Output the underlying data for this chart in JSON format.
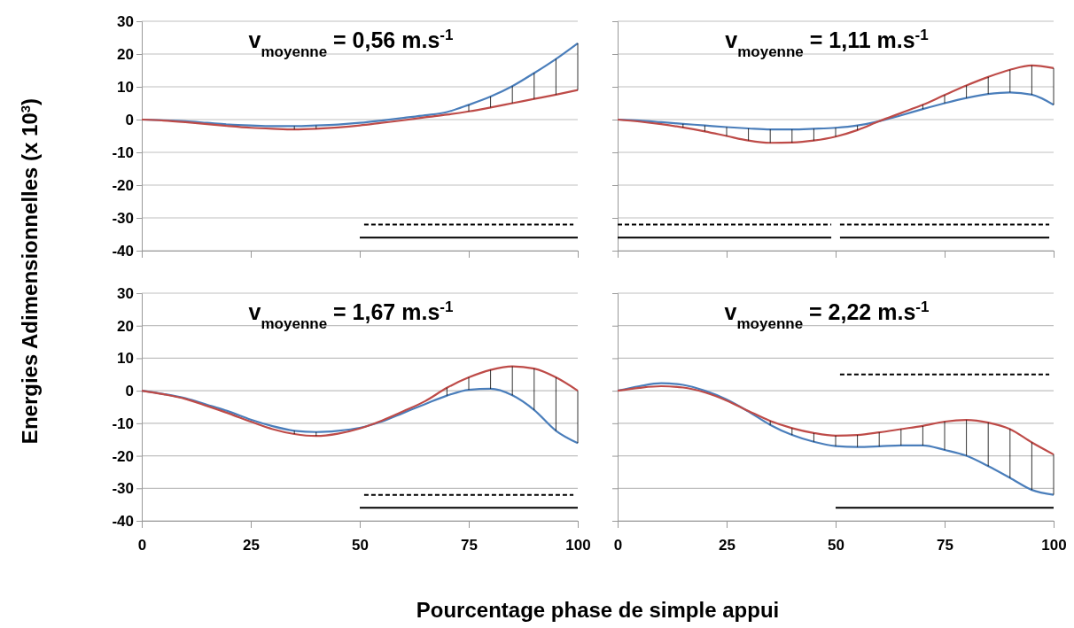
{
  "chart_data": [
    {
      "type": "line",
      "title": "v$_{moyenne}$ = 0,56 m.s$^{-1}$",
      "ylabel": "Energies Adimensionnelles (x 10$^{3}$)",
      "xlabel": "Pourcentage phase de simple appui",
      "x": [
        0,
        5,
        10,
        15,
        20,
        25,
        30,
        35,
        40,
        45,
        50,
        55,
        60,
        65,
        70,
        75,
        80,
        85,
        90,
        95,
        100
      ],
      "xlim": [
        0,
        100
      ],
      "xticks": [
        0,
        25,
        50,
        75,
        100
      ],
      "ylim": [
        -40,
        30
      ],
      "yticks": [
        -40,
        -30,
        -20,
        -10,
        0,
        10,
        20,
        30
      ],
      "grid": "y",
      "tick_labels": "y",
      "line_style": "solid",
      "series": [
        {
          "color": "#4a7ebb",
          "values": [
            0,
            -0.2,
            -0.5,
            -1,
            -1.5,
            -1.8,
            -2,
            -2,
            -1.8,
            -1.5,
            -1,
            -0.3,
            0.5,
            1.3,
            2.3,
            4.5,
            7,
            10.2,
            14.2,
            18.5,
            23.3
          ]
        },
        {
          "color": "#be4b48",
          "values": [
            0,
            -0.3,
            -0.8,
            -1.4,
            -2,
            -2.5,
            -2.8,
            -3,
            -2.8,
            -2.4,
            -1.8,
            -1,
            -0.2,
            0.7,
            1.5,
            2.5,
            3.7,
            5,
            6.3,
            7.6,
            9
          ],
          "errors": [
            null,
            null,
            null,
            null,
            null,
            null,
            null,
            [
              -3,
              -2
            ],
            [
              -2.8,
              -1.8
            ],
            null,
            null,
            null,
            null,
            null,
            null,
            [
              2.5,
              4.5
            ],
            [
              3.7,
              7
            ],
            [
              5,
              10.2
            ],
            [
              6.3,
              14.2
            ],
            [
              7.6,
              18.5
            ],
            [
              9,
              23.3
            ]
          ]
        },
        {
          "color": "#000000",
          "line_style": "dashed",
          "x": [
            51,
            99
          ],
          "values": [
            -32,
            -32
          ]
        },
        {
          "color": "#000000",
          "line_style": "solid",
          "x": [
            50,
            100
          ],
          "values": [
            -36,
            -36
          ]
        }
      ]
    },
    {
      "type": "line",
      "title": "v$_{moyenne}$ = 1,11 m.s$^{-1}$",
      "x": [
        0,
        5,
        10,
        15,
        20,
        25,
        30,
        35,
        40,
        45,
        50,
        55,
        60,
        65,
        70,
        75,
        80,
        85,
        90,
        95,
        100
      ],
      "xlim": [
        0,
        100
      ],
      "xticks": [
        0,
        25,
        50,
        75,
        100
      ],
      "ylim": [
        -40,
        30
      ],
      "yticks": [
        -40,
        -30,
        -20,
        -10,
        0,
        10,
        20,
        30
      ],
      "grid": "y",
      "tick_labels": false,
      "line_style": "solid",
      "series": [
        {
          "color": "#4a7ebb",
          "values": [
            0,
            -0.3,
            -0.8,
            -1.3,
            -1.8,
            -2.3,
            -2.7,
            -3,
            -3,
            -2.8,
            -2.5,
            -1.8,
            -0.5,
            1.3,
            3.2,
            5,
            6.6,
            7.8,
            8.3,
            7.6,
            4.5
          ]
        },
        {
          "color": "#be4b48",
          "values": [
            0,
            -0.6,
            -1.4,
            -2.4,
            -3.6,
            -5,
            -6.4,
            -7.1,
            -7,
            -6.4,
            -5.2,
            -3.2,
            -0.5,
            2,
            4.5,
            7.5,
            10.4,
            13,
            15.2,
            16.5,
            15.7
          ],
          "errors": [
            null,
            null,
            null,
            [
              -2.4,
              -1.3
            ],
            [
              -3.6,
              -1.8
            ],
            [
              -5,
              -2.3
            ],
            [
              -6.4,
              -2.7
            ],
            [
              -7.1,
              -3
            ],
            [
              -7,
              -3
            ],
            [
              -6.4,
              -2.8
            ],
            [
              -5.2,
              -2.5
            ],
            [
              -3.2,
              -1.8
            ],
            null,
            null,
            [
              3.2,
              4.5
            ],
            [
              5,
              7.5
            ],
            [
              6.6,
              10.4
            ],
            [
              7.8,
              13
            ],
            [
              8.3,
              15.2
            ],
            [
              7.6,
              16.5
            ],
            [
              4.5,
              15.7
            ]
          ]
        },
        {
          "color": "#000000",
          "line_style": "dashed",
          "x": [
            0,
            49
          ],
          "values": [
            -32,
            -32
          ]
        },
        {
          "color": "#000000",
          "line_style": "dashed",
          "x": [
            51,
            99
          ],
          "values": [
            -32,
            -32
          ]
        },
        {
          "color": "#000000",
          "line_style": "solid",
          "x": [
            0,
            49
          ],
          "values": [
            -36,
            -36
          ]
        },
        {
          "color": "#000000",
          "line_style": "solid",
          "x": [
            51,
            99
          ],
          "values": [
            -36,
            -36
          ]
        }
      ]
    },
    {
      "type": "line",
      "title": "v$_{moyenne}$ = 1,67 m.s$^{-1}$",
      "x": [
        0,
        5,
        10,
        15,
        20,
        25,
        30,
        35,
        40,
        45,
        50,
        55,
        60,
        65,
        70,
        75,
        80,
        85,
        90,
        95,
        100
      ],
      "xlim": [
        0,
        100
      ],
      "xticks": [
        0,
        25,
        50,
        75,
        100
      ],
      "ylim": [
        -40,
        30
      ],
      "yticks": [
        -40,
        -30,
        -20,
        -10,
        0,
        10,
        20,
        30
      ],
      "grid": "y",
      "line_style": "solid",
      "series": [
        {
          "color": "#4a7ebb",
          "values": [
            0,
            -1,
            -2.3,
            -4.3,
            -6.4,
            -8.9,
            -10.9,
            -12.3,
            -12.7,
            -12.3,
            -11.4,
            -9.5,
            -6.8,
            -4.1,
            -1.5,
            0.3,
            0.6,
            -1.4,
            -5.9,
            -12.3,
            -16.1
          ]
        },
        {
          "color": "#be4b48",
          "values": [
            0,
            -1.1,
            -2.5,
            -4.7,
            -7,
            -9.5,
            -11.8,
            -13.3,
            -13.9,
            -13.2,
            -11.6,
            -9.2,
            -6.3,
            -3.2,
            0.9,
            4.1,
            6.4,
            7.5,
            6.8,
            4.1,
            0
          ],
          "errors": [
            null,
            null,
            null,
            null,
            null,
            null,
            null,
            [
              -13.3,
              -12.3
            ],
            [
              -13.9,
              -12.7
            ],
            null,
            null,
            null,
            null,
            null,
            [
              -1.5,
              0.9
            ],
            [
              0.3,
              4.1
            ],
            [
              0.6,
              6.4
            ],
            [
              -1.4,
              7.5
            ],
            [
              -5.9,
              6.8
            ],
            [
              -12.3,
              4.1
            ],
            [
              -16.1,
              0
            ]
          ]
        },
        {
          "color": "#000000",
          "line_style": "dashed",
          "x": [
            51,
            99
          ],
          "values": [
            -32,
            -32
          ]
        },
        {
          "color": "#000000",
          "line_style": "solid",
          "x": [
            50,
            100
          ],
          "values": [
            -36,
            -36
          ]
        }
      ]
    },
    {
      "type": "line",
      "title": "v$_{moyenne}$ = 2,22 m.s$^{-1}$",
      "x": [
        0,
        5,
        10,
        15,
        20,
        25,
        30,
        35,
        40,
        45,
        50,
        55,
        60,
        65,
        70,
        75,
        80,
        85,
        90,
        95,
        100
      ],
      "xlim": [
        0,
        100
      ],
      "xticks": [
        0,
        25,
        50,
        75,
        100
      ],
      "ylim": [
        -40,
        30
      ],
      "yticks": [
        -40,
        -30,
        -20,
        -10,
        0,
        10,
        20,
        30
      ],
      "grid": "y",
      "tick_labels": "x",
      "line_style": "solid",
      "series": [
        {
          "color": "#4a7ebb",
          "values": [
            0,
            1.4,
            2.3,
            1.8,
            0,
            -2.7,
            -6.4,
            -10.5,
            -13.6,
            -15.7,
            -17,
            -17.3,
            -17.1,
            -16.8,
            -16.8,
            -18.2,
            -20,
            -23.2,
            -26.8,
            -30.5,
            -32
          ]
        },
        {
          "color": "#be4b48",
          "values": [
            0,
            0.9,
            1.4,
            1,
            -0.5,
            -3,
            -6.2,
            -9.3,
            -11.5,
            -13,
            -13.8,
            -13.6,
            -12.8,
            -11.8,
            -10.8,
            -9.5,
            -9,
            -9.8,
            -11.8,
            -15.9,
            -19.6
          ],
          "errors": [
            null,
            null,
            null,
            null,
            null,
            null,
            null,
            [
              -10.5,
              -9.3
            ],
            [
              -13.6,
              -11.5
            ],
            [
              -15.7,
              -13
            ],
            [
              -17,
              -13.8
            ],
            [
              -17.3,
              -13.6
            ],
            [
              -17.1,
              -12.8
            ],
            [
              -16.8,
              -11.8
            ],
            [
              -16.8,
              -10.8
            ],
            [
              -18.2,
              -9.5
            ],
            [
              -20,
              -9
            ],
            [
              -23.2,
              -9.8
            ],
            [
              -26.8,
              -11.8
            ],
            [
              -30.5,
              -15.9
            ],
            [
              -32,
              -19.6
            ]
          ]
        },
        {
          "color": "#000000",
          "line_style": "dashed",
          "x": [
            51,
            99
          ],
          "values": [
            5,
            5
          ]
        },
        {
          "color": "#000000",
          "line_style": "solid",
          "x": [
            50,
            100
          ],
          "values": [
            -36,
            -36
          ]
        }
      ]
    }
  ]
}
